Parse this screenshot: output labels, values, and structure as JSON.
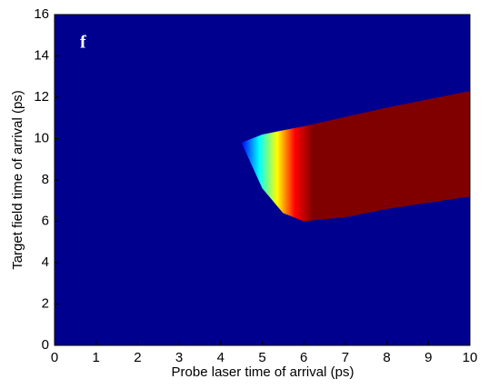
{
  "chart_data": {
    "type": "band",
    "panel_label": "f",
    "xlabel": "Probe laser time of arrival (ps)",
    "ylabel": "Target field time of arrival (ps)",
    "background": "#00008f",
    "colormap": [
      "#00008f",
      "#0000ff",
      "#00ffff",
      "#ffff00",
      "#ff0000",
      "#800000"
    ],
    "x": [
      4.5,
      5,
      5.5,
      6,
      7,
      8,
      9,
      10
    ],
    "upper": [
      9.8,
      10.2,
      10.4,
      10.6,
      11.05,
      11.5,
      11.9,
      12.3
    ],
    "lower": [
      9.8,
      7.6,
      6.4,
      6.0,
      6.2,
      6.6,
      6.9,
      7.2
    ],
    "xlim": [
      0,
      10
    ],
    "xticks": [
      0,
      1,
      2,
      3,
      4,
      5,
      6,
      7,
      8,
      9,
      10
    ],
    "ylim": [
      0,
      16
    ],
    "yticks": [
      0,
      2,
      4,
      6,
      8,
      10,
      12,
      14,
      16
    ]
  }
}
